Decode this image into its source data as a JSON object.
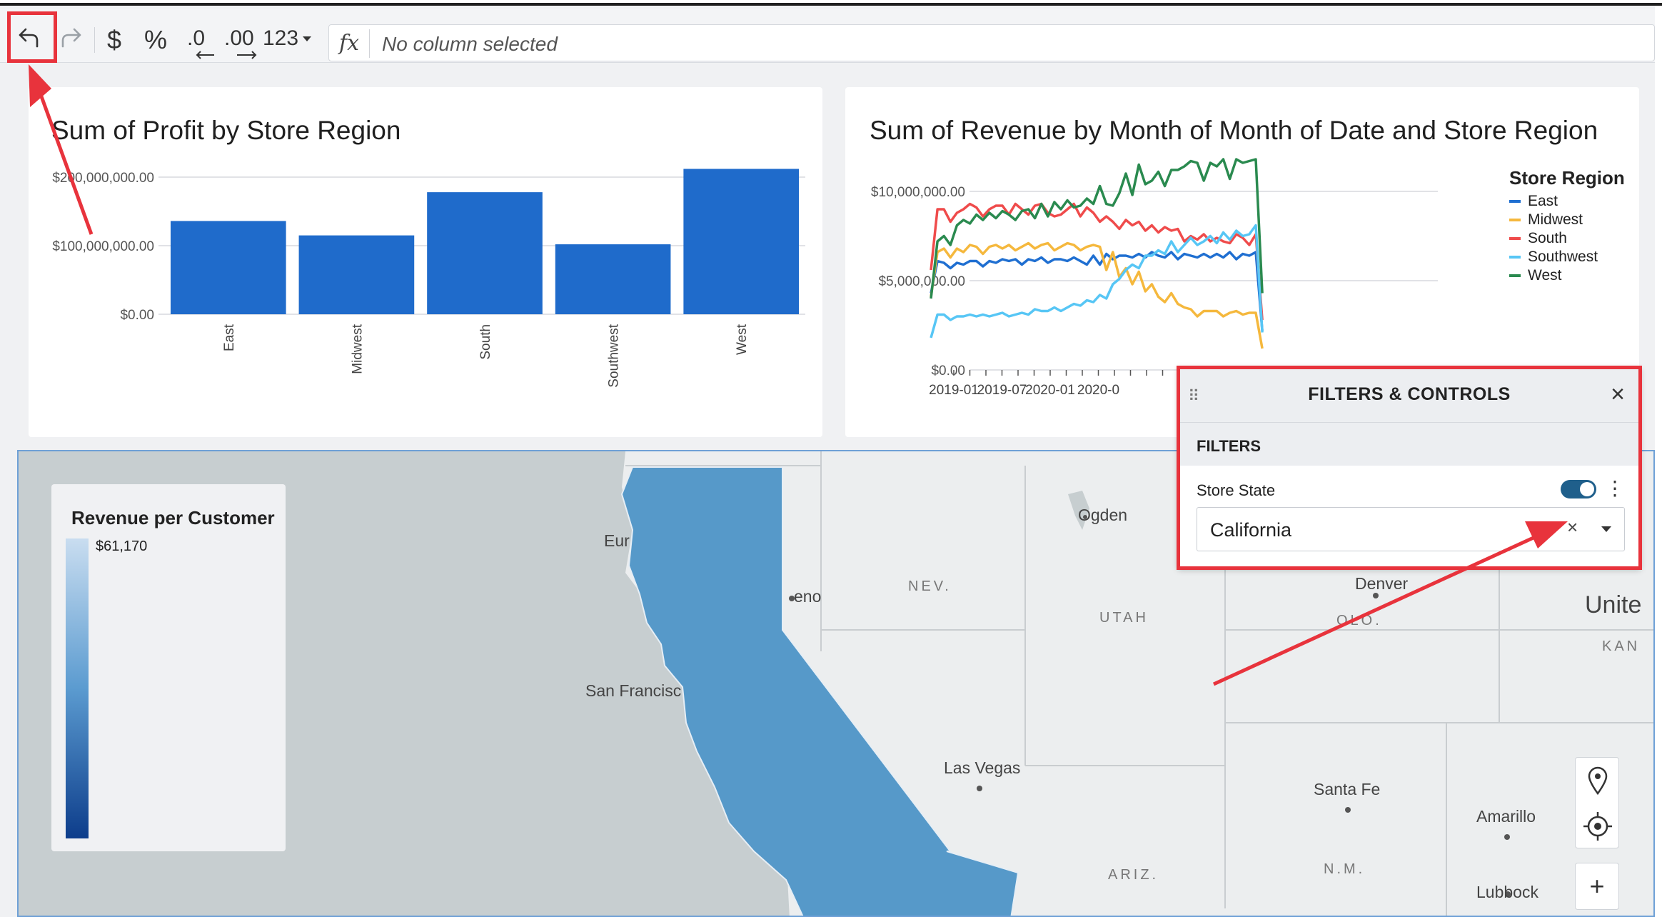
{
  "toolbar": {
    "currency_symbol": "$",
    "percent_symbol": "%",
    "decrease_decimals": ".0",
    "increase_decimals": ".00",
    "number_format": "123",
    "fx_label": "fx",
    "formula_placeholder": "No column selected"
  },
  "profit_chart": {
    "title": "Sum of Profit by Store Region"
  },
  "revenue_chart": {
    "title": "Sum of Revenue by Month of Month of Date and Store Region",
    "legend_title": "Store Region",
    "legend": [
      {
        "name": "East",
        "color": "#1f6fd1"
      },
      {
        "name": "Midwest",
        "color": "#f5b83d"
      },
      {
        "name": "South",
        "color": "#ef4b4b"
      },
      {
        "name": "Southwest",
        "color": "#57c6f5"
      },
      {
        "name": "West",
        "color": "#2a8a4f"
      }
    ]
  },
  "chart_data": [
    {
      "type": "bar",
      "title": "Sum of Profit by Store Region",
      "categories": [
        "East",
        "Midwest",
        "South",
        "Southwest",
        "West"
      ],
      "values": [
        136000000,
        115000000,
        178000000,
        102000000,
        212000000
      ],
      "ylim": [
        0,
        200000000
      ],
      "yticks": [
        0,
        100000000,
        200000000
      ],
      "ytick_labels": [
        "$0.00",
        "$100,000,000.00",
        "$200,000,000.00"
      ],
      "color": "#1f6bcb"
    },
    {
      "type": "line",
      "title": "Sum of Revenue by Month of Month of Date and Store Region",
      "ylim": [
        0,
        12000000
      ],
      "yticks": [
        0,
        5000000,
        10000000
      ],
      "ytick_labels": [
        "$0.00",
        "$5,000,000.00",
        "$10,000,000.00"
      ],
      "xtick_labels": [
        "2019-01",
        "2019-07",
        "2020-01",
        "2020-0"
      ],
      "legend_title": "Store Region",
      "series": [
        {
          "name": "East",
          "color": "#1f6fd1",
          "values": [
            4.3,
            6.1,
            6.0,
            5.7,
            6.0,
            5.9,
            6.1,
            6.1,
            5.8,
            6.1,
            6.0,
            6.2,
            6.1,
            6.2,
            5.9,
            6.2,
            6.1,
            6.3,
            6.0,
            6.2,
            6.2,
            6.1,
            6.3,
            6.1,
            5.9,
            6.4,
            5.9,
            6.5,
            6.2,
            6.4,
            6.4,
            6.3,
            6.5,
            6.3,
            6.6,
            6.4,
            6.3,
            6.6,
            6.2,
            6.5,
            6.4,
            6.3,
            6.5,
            6.3,
            6.5,
            6.3,
            6.6,
            6.2,
            6.5,
            6.4,
            6.6,
            2.2
          ]
        },
        {
          "name": "Midwest",
          "color": "#f5b83d",
          "values": [
            4.1,
            6.6,
            6.8,
            6.3,
            6.8,
            6.6,
            7.0,
            6.9,
            6.5,
            6.9,
            7.0,
            6.8,
            7.0,
            6.7,
            6.9,
            7.1,
            6.8,
            7.0,
            7.1,
            6.7,
            6.9,
            7.1,
            7.0,
            6.7,
            6.9,
            7.0,
            6.9,
            5.6,
            6.6,
            5.2,
            5.7,
            4.8,
            5.5,
            4.4,
            4.8,
            4.1,
            3.8,
            4.3,
            3.7,
            3.5,
            3.4,
            3.0,
            3.3,
            3.3,
            3.3,
            3.0,
            3.2,
            3.3,
            3.1,
            3.2,
            3.2,
            1.2
          ]
        },
        {
          "name": "South",
          "color": "#ef4b4b",
          "values": [
            5.6,
            9.0,
            9.0,
            8.3,
            8.8,
            9.0,
            9.3,
            9.1,
            8.6,
            9.0,
            9.2,
            9.2,
            8.7,
            9.3,
            9.0,
            8.7,
            9.2,
            9.3,
            8.8,
            8.6,
            8.7,
            9.0,
            9.3,
            8.6,
            9.1,
            8.8,
            8.3,
            8.6,
            8.3,
            7.9,
            8.4,
            8.1,
            8.3,
            7.8,
            8.1,
            7.7,
            8.0,
            7.8,
            7.9,
            7.2,
            7.5,
            7.3,
            7.6,
            7.2,
            7.4,
            7.2,
            7.1,
            7.6,
            7.4,
            7.0,
            7.6,
            2.8
          ]
        },
        {
          "name": "Southwest",
          "color": "#57c6f5",
          "values": [
            1.8,
            3.1,
            3.1,
            2.8,
            3.0,
            3.0,
            3.1,
            3.0,
            3.1,
            3.0,
            3.1,
            3.2,
            3.0,
            3.1,
            3.2,
            3.1,
            3.4,
            3.3,
            3.3,
            3.5,
            3.3,
            3.5,
            3.7,
            3.6,
            3.9,
            3.8,
            4.2,
            4.0,
            4.8,
            5.1,
            5.6,
            5.9,
            5.7,
            6.4,
            6.4,
            6.7,
            6.5,
            7.2,
            6.6,
            7.0,
            7.4,
            7.0,
            7.2,
            7.5,
            7.1,
            7.7,
            7.3,
            7.8,
            7.5,
            7.6,
            8.1,
            2.1
          ]
        },
        {
          "name": "West",
          "color": "#2a8a4f",
          "values": [
            4.0,
            7.2,
            7.5,
            7.0,
            8.1,
            8.4,
            8.2,
            8.7,
            8.4,
            8.8,
            8.5,
            8.9,
            8.7,
            8.4,
            8.9,
            9.0,
            8.5,
            9.3,
            8.6,
            9.4,
            9.0,
            9.5,
            9.1,
            9.2,
            9.6,
            9.3,
            10.3,
            9.3,
            9.2,
            9.9,
            11.0,
            9.8,
            11.5,
            10.4,
            10.6,
            11.1,
            10.3,
            11.2,
            11.2,
            11.4,
            11.7,
            11.6,
            10.6,
            11.6,
            11.4,
            11.8,
            10.7,
            11.8,
            11.6,
            11.7,
            11.8,
            4.3
          ]
        }
      ],
      "value_unit": "millions USD"
    }
  ],
  "filters_panel": {
    "title": "FILTERS & CONTROLS",
    "section": "FILTERS",
    "filter_label": "Store State",
    "selected_value": "California",
    "clear_symbol": "×",
    "close_symbol": "×"
  },
  "map": {
    "legend_title": "Revenue per Customer",
    "legend_value": "$61,170",
    "labels": {
      "eureka": "Eur",
      "reno": "eno",
      "nev": "NEV.",
      "ogden": "Ogden",
      "utah": "UTAH",
      "denver": "Denver",
      "colo": "OLO.",
      "united": "Unite",
      "kans": "KAN",
      "sanfrancisco": "San Francisc",
      "lasvegas": "Las Vegas",
      "santafe": "Santa Fe",
      "amarillo": "Amarillo",
      "ariz": "ARIZ.",
      "nm": "N.M.",
      "lubbock": "Lubbock"
    },
    "zoom_in": "+"
  }
}
